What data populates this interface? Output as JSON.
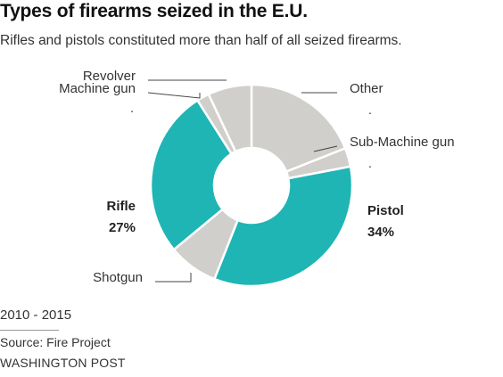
{
  "chart_data": {
    "type": "pie",
    "title": "Types of firearms seized in the E.U.",
    "subtitle": "Rifles and pistols constituted more than half of all seized firearms.",
    "slices": [
      {
        "label": "Other",
        "value": 19,
        "value_label": ".",
        "color": "#d0cfcb",
        "emphasis": false
      },
      {
        "label": "Sub-Machine gun",
        "value": 3,
        "value_label": ".",
        "color": "#d0cfcb",
        "emphasis": false
      },
      {
        "label": "Pistol",
        "value": 34,
        "value_label": "34%",
        "color": "#1fb5b5",
        "emphasis": true
      },
      {
        "label": "Shotgun",
        "value": 8,
        "value_label": ".",
        "color": "#d0cfcb",
        "emphasis": false
      },
      {
        "label": "Rifle",
        "value": 27,
        "value_label": "27%",
        "color": "#1fb5b5",
        "emphasis": true
      },
      {
        "label": "Machine gun",
        "value": 2,
        "value_label": ".",
        "color": "#d0cfcb",
        "emphasis": false
      },
      {
        "label": "Revolver",
        "value": 7,
        "value_label": "",
        "color": "#d0cfcb",
        "emphasis": false
      }
    ]
  },
  "footer": {
    "years": "2010 - 2015",
    "source": "Source: Fire Project",
    "credit": "WASHINGTON POST"
  }
}
